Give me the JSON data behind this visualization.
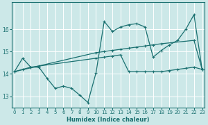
{
  "xlabel": "Humidex (Indice chaleur)",
  "bg_color": "#cce8e8",
  "grid_color": "#ffffff",
  "line_color": "#1a7070",
  "xlim": [
    -0.3,
    23.3
  ],
  "ylim": [
    12.5,
    17.2
  ],
  "yticks": [
    13,
    14,
    15,
    16
  ],
  "xticks": [
    0,
    1,
    2,
    3,
    4,
    5,
    6,
    7,
    8,
    9,
    10,
    11,
    12,
    13,
    14,
    15,
    16,
    17,
    18,
    19,
    20,
    21,
    22,
    23
  ],
  "line1_x": [
    0,
    1,
    2,
    3,
    4,
    5,
    6,
    7,
    8,
    9,
    10,
    11,
    12,
    13,
    14,
    15,
    16,
    17,
    18,
    19,
    20,
    21,
    22,
    23
  ],
  "line1_y": [
    14.1,
    14.7,
    14.3,
    14.3,
    13.8,
    13.35,
    13.45,
    13.35,
    13.05,
    12.72,
    14.05,
    16.35,
    15.9,
    16.1,
    16.2,
    16.25,
    16.1,
    14.75,
    15.05,
    15.3,
    15.5,
    16.0,
    16.65,
    14.2
  ],
  "line2_x": [
    0,
    10,
    11,
    12,
    13,
    14,
    15,
    16,
    17,
    18,
    22,
    23
  ],
  "line2_y": [
    14.1,
    14.95,
    15.0,
    15.05,
    15.1,
    15.15,
    15.2,
    15.25,
    15.3,
    15.35,
    15.5,
    14.2
  ],
  "line3_x": [
    0,
    1,
    2,
    3,
    10,
    11,
    12,
    13,
    14,
    15,
    16,
    17,
    18,
    19,
    20,
    21,
    22,
    23
  ],
  "line3_y": [
    14.1,
    14.2,
    14.3,
    14.35,
    14.7,
    14.75,
    14.8,
    14.85,
    14.1,
    14.1,
    14.1,
    14.1,
    14.1,
    14.15,
    14.2,
    14.25,
    14.3,
    14.2
  ],
  "figwidth": 3.0,
  "figheight": 1.8,
  "dpi": 100
}
